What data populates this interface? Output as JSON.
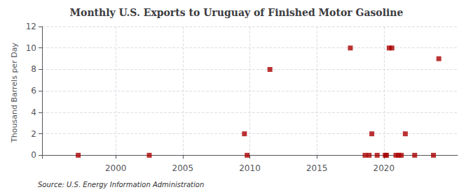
{
  "chart_data": {
    "type": "scatter",
    "title": "Monthly U.S. Exports to Uruguay of Finished Motor Gasoline",
    "ylabel": "Thousand Barrels per Day",
    "source": "Source: U.S. Energy Information Administration",
    "x": [
      1997.2,
      2002.5,
      2009.6,
      2009.8,
      2011.5,
      2017.5,
      2018.6,
      2018.9,
      2019.1,
      2019.5,
      2020.1,
      2020.2,
      2020.4,
      2020.6,
      2020.9,
      2021.1,
      2021.3,
      2021.6,
      2022.3,
      2023.7,
      2024.1
    ],
    "values": [
      0.0,
      0.0,
      2.0,
      0.0,
      8.0,
      10.0,
      0.0,
      0.0,
      2.0,
      0.0,
      0.0,
      0.0,
      10.0,
      10.0,
      0.0,
      0.0,
      0.0,
      2.0,
      0.0,
      0.0,
      9.0
    ],
    "color": "#aa0000",
    "marker": "square",
    "xlim": [
      1994.5,
      2025.5
    ],
    "ylim": [
      -0.3,
      12
    ],
    "xticks": [
      2000,
      2005,
      2010,
      2015,
      2020
    ],
    "yticks": [
      0,
      2,
      4,
      6,
      8,
      10,
      12
    ],
    "grid": true
  }
}
